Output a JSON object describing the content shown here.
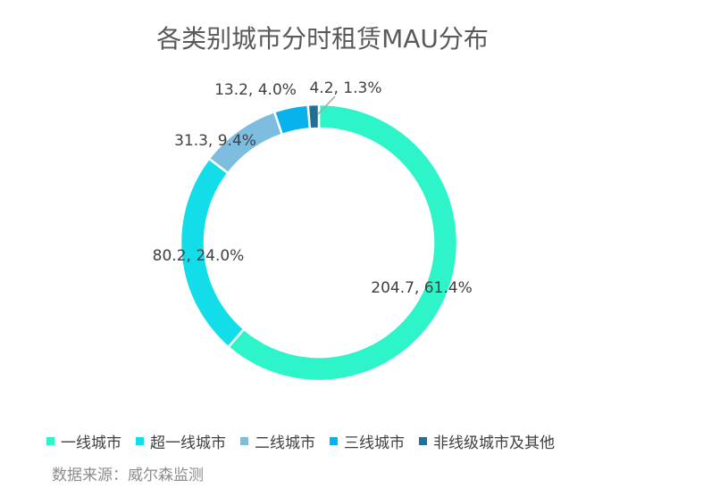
{
  "chart_data": {
    "type": "pie",
    "title": "各类别城市分时租赁MAU分布",
    "series": [
      {
        "name": "一线城市",
        "value": 204.7,
        "percent": 61.4,
        "label": "204.7, 61.4%",
        "color": "#2ef5c9"
      },
      {
        "name": "超一线城市",
        "value": 80.2,
        "percent": 24.0,
        "label": "80.2, 24.0%",
        "color": "#13dde8"
      },
      {
        "name": "二线城市",
        "value": 31.3,
        "percent": 9.4,
        "label": "31.3, 9.4%",
        "color": "#7cbde0"
      },
      {
        "name": "三线城市",
        "value": 13.2,
        "percent": 4.0,
        "label": "13.2, 4.0%",
        "color": "#08b2ea"
      },
      {
        "name": "非线级城市及其他",
        "value": 4.2,
        "percent": 1.3,
        "label": "4.2, 1.3%",
        "color": "#236f98"
      }
    ],
    "style": "donut",
    "legend_position": "bottom"
  },
  "source": "数据来源：威尔森监测"
}
